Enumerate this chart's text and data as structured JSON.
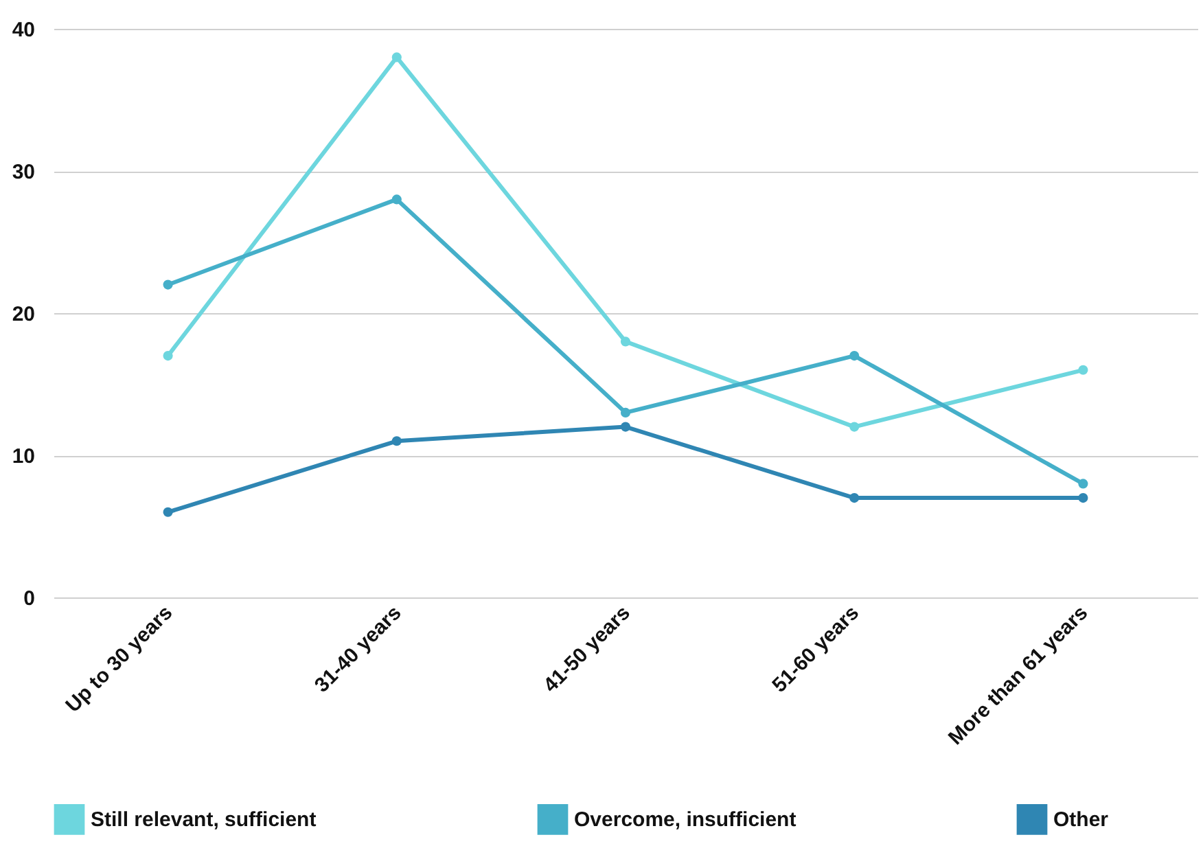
{
  "chart_data": {
    "type": "line",
    "categories": [
      "Up to 30 years",
      "31-40 years",
      "41-50 years",
      "51-60 years",
      "More than 61 years"
    ],
    "series": [
      {
        "name": "Still relevant, sufficient",
        "color": "#6dd6de",
        "values": [
          17,
          38,
          18,
          12,
          16
        ]
      },
      {
        "name": "Overcome, insufficient",
        "color": "#45afc9",
        "values": [
          22,
          28,
          13,
          17,
          8
        ]
      },
      {
        "name": "Other",
        "color": "#2f86b3",
        "values": [
          6,
          11,
          12,
          7,
          7
        ]
      }
    ],
    "ylim": [
      0,
      40
    ],
    "yticks": [
      0,
      10,
      20,
      30,
      40
    ],
    "grid": "y",
    "legend": "bottom",
    "marker": "circle",
    "line_style": "solid"
  }
}
